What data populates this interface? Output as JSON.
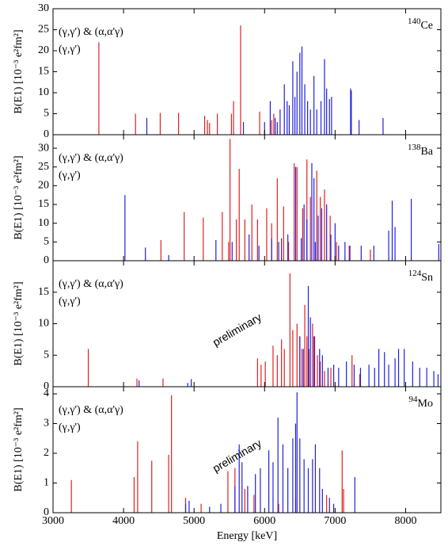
{
  "chart_data": [
    {
      "type": "stem",
      "nucleus_mass": "140",
      "nucleus": "Ce",
      "ylabel": "B(E1) [10⁻³ e²fm²]",
      "xlim": [
        3000,
        8500
      ],
      "xticks": [
        3000,
        4000,
        5000,
        6000,
        7000,
        8000
      ],
      "ylim": [
        0,
        30
      ],
      "yticks": [
        0,
        5,
        10,
        15,
        20,
        25,
        30
      ],
      "series": [
        {
          "name": "(γ,γ') & (α,α'γ)",
          "color": "#e02020",
          "x": [
            3650,
            4170,
            4520,
            4780,
            5150,
            5190,
            5220,
            5330,
            5530,
            5560,
            5660,
            5930,
            6100,
            6130
          ],
          "values": [
            22,
            5,
            5.2,
            5.2,
            4.5,
            3.5,
            2.8,
            5,
            5,
            8,
            26,
            5.5,
            3.5,
            5
          ]
        },
        {
          "name": "(γ,γ')",
          "color": "#2020e0",
          "x": [
            4330,
            5700,
            6000,
            6080,
            6150,
            6180,
            6220,
            6280,
            6320,
            6350,
            6400,
            6430,
            6460,
            6500,
            6530,
            6570,
            6610,
            6650,
            6700,
            6740,
            6800,
            6850,
            6880,
            6920,
            6950,
            7220,
            7230,
            7340,
            7680
          ],
          "values": [
            4,
            3,
            3,
            8,
            4,
            3,
            6,
            12,
            8,
            7,
            17.5,
            9,
            15,
            19.5,
            21,
            12,
            8,
            6,
            14,
            6,
            8,
            18,
            11,
            8.5,
            9,
            11,
            10.5,
            3.5,
            4
          ]
        }
      ]
    },
    {
      "type": "stem",
      "nucleus_mass": "138",
      "nucleus": "Ba",
      "ylabel": "B(E1) [10⁻³ e²fm²]",
      "xlim": [
        3000,
        8500
      ],
      "xticks": [
        3000,
        4000,
        5000,
        6000,
        7000,
        8000
      ],
      "ylim": [
        0,
        33.6
      ],
      "yticks": [
        0,
        5,
        10,
        15,
        20,
        25,
        30
      ],
      "series": [
        {
          "name": "(γ,γ') & (α,α'γ)",
          "color": "#e02020",
          "x": [
            4530,
            4860,
            5130,
            5400,
            5490,
            5510,
            5600,
            5640,
            5720,
            5820,
            5900,
            6030,
            6100,
            6180,
            6270,
            6340,
            6420,
            6460,
            6540,
            6600,
            6650,
            6740,
            6790,
            6850,
            6930,
            7020,
            7200,
            7500
          ],
          "values": [
            5.5,
            13,
            11.5,
            13,
            5,
            32.5,
            11,
            24.5,
            11,
            15,
            11,
            14,
            10,
            22,
            14.5,
            5,
            26,
            25,
            14,
            27,
            17,
            24,
            17,
            19,
            12,
            5,
            4,
            3
          ]
        },
        {
          "name": "(γ,γ')",
          "color": "#2020e0",
          "x": [
            4020,
            4310,
            4640,
            5310,
            5540,
            5780,
            5920,
            6100,
            6200,
            6240,
            6330,
            6440,
            6520,
            6560,
            6600,
            6670,
            6700,
            6720,
            6760,
            6810,
            6880,
            6940,
            7000,
            7050,
            7140,
            7210,
            7370,
            7550,
            7760,
            7810,
            7850,
            8080,
            8470
          ],
          "values": [
            17.5,
            3.5,
            1.5,
            5.5,
            5,
            7,
            4,
            6,
            5,
            6,
            7,
            25,
            6,
            15,
            11,
            26,
            22,
            5,
            12,
            14,
            15,
            7,
            10,
            4,
            5,
            4,
            4,
            4,
            8,
            16,
            9,
            16.5,
            4.5
          ]
        }
      ]
    },
    {
      "type": "stem",
      "nucleus_mass": "124",
      "nucleus": "Sn",
      "ylabel": "B(E1) [10⁻³ e²fm²]",
      "annotation": "preliminary",
      "xlim": [
        3000,
        8500
      ],
      "xticks": [
        3000,
        4000,
        5000,
        6000,
        7000,
        8000
      ],
      "ylim": [
        0,
        20
      ],
      "yticks": [
        0,
        5,
        10,
        15
      ],
      "series": [
        {
          "name": "(γ,γ') & (α,α'γ)",
          "color": "#e02020",
          "x": [
            3500,
            4190,
            4560,
            5900,
            5950,
            6010,
            6120,
            6180,
            6240,
            6280,
            6360,
            6400,
            6460,
            6500,
            6530,
            6570,
            6600,
            6630,
            6680,
            6710,
            6750,
            6790,
            6850,
            6940,
            7240,
            7350
          ],
          "values": [
            6,
            1.3,
            1.3,
            4.5,
            3.5,
            4,
            6.5,
            5,
            7.5,
            6,
            18,
            9,
            10,
            8,
            6,
            13,
            8,
            6,
            10,
            8,
            5,
            4,
            2.5,
            3,
            5,
            2
          ]
        },
        {
          "name": "(γ,γ')",
          "color": "#2020e0",
          "x": [
            4220,
            4910,
            4960,
            6500,
            6550,
            6620,
            6650,
            6700,
            6780,
            6820,
            6900,
            6980,
            7050,
            7160,
            7270,
            7360,
            7480,
            7560,
            7620,
            7700,
            7760,
            7850,
            7900,
            7980,
            8100,
            8200,
            8300,
            8400,
            8460
          ],
          "values": [
            1,
            0.6,
            1.2,
            8,
            6,
            16,
            11,
            8,
            6,
            5,
            3,
            3.5,
            3,
            4,
            3.5,
            3,
            3.5,
            3,
            6,
            5.5,
            3.5,
            4.5,
            6,
            6,
            4,
            3,
            3,
            2.5,
            2
          ]
        }
      ]
    },
    {
      "type": "stem",
      "nucleus_mass": "94",
      "nucleus": "Mo",
      "ylabel": "B(E1) [10⁻³ e²fm²]",
      "annotation": "preliminary",
      "xlabel": "Energy [keV]",
      "xlim": [
        3000,
        8500
      ],
      "xticks": [
        3000,
        4000,
        5000,
        6000,
        7000,
        8000
      ],
      "ylim": [
        0,
        4.24
      ],
      "yticks": [
        0,
        1,
        2,
        3,
        4
      ],
      "series": [
        {
          "name": "(γ,γ') & (α,α'γ)",
          "color": "#e02020",
          "x": [
            3260,
            4150,
            4200,
            4400,
            4640,
            4680,
            4880,
            5100,
            5480,
            5580,
            5720,
            5850,
            6200,
            6440,
            6880,
            7100,
            7120
          ],
          "values": [
            1.1,
            1.2,
            2.4,
            1.75,
            1.95,
            3.95,
            0.5,
            0.3,
            1.4,
            1.5,
            0.8,
            0.6,
            0.3,
            0.5,
            0.6,
            2.1,
            0.8
          ]
        },
        {
          "name": "(γ,γ')",
          "color": "#2020e0",
          "x": [
            4880,
            4930,
            5220,
            5380,
            5580,
            5640,
            5680,
            5760,
            5870,
            5940,
            6060,
            6120,
            6190,
            6260,
            6330,
            6400,
            6440,
            6460,
            6500,
            6560,
            6620,
            6680,
            6720,
            6780,
            6820,
            6920,
            6980,
            7280
          ],
          "values": [
            0.3,
            0.4,
            0.2,
            0.3,
            0.9,
            2.3,
            1.7,
            0.9,
            1.3,
            1.5,
            2.1,
            1.7,
            3.2,
            2.3,
            1.5,
            2.5,
            3.0,
            4.05,
            2.5,
            1.8,
            1.5,
            1.8,
            2.3,
            1.5,
            0.8,
            0.5,
            0.3,
            1.2
          ]
        }
      ]
    }
  ]
}
